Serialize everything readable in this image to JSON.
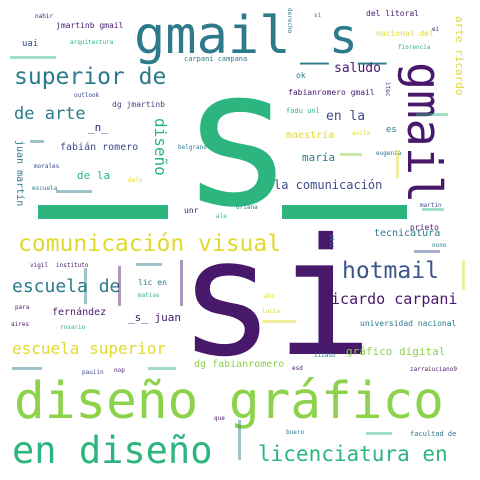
{
  "colors": {
    "background": "#ffffff",
    "teal": "#2c7a8c",
    "green": "#2cb57e",
    "purple": "#48196b",
    "yellow": "#e0da2c",
    "lime": "#8cd24a",
    "blue": "#3a568c",
    "navy": "#3e4a89"
  },
  "words": {
    "s": "s",
    "si": "si",
    "diseno_grafico": "diseño gráfico",
    "gmail": "gmail",
    "us_us": "_s_",
    "gmail_v": "gmail",
    "comunicacion_visual": "comunicación visual",
    "en_diseno": "en diseño",
    "superior_de": "superior de",
    "hotmail": "hotmail",
    "licenciatura_en": "licenciatura en",
    "escuela_de": "escuela de",
    "ricardo_carpani": "ricardo carpani",
    "escuela_superior": "escuela superior",
    "de_arte": "de arte",
    "diseno_v": "diseño",
    "la_comunicacion": "la comunicación",
    "grafico_digital": "gráfico digital",
    "saludo": "saludo",
    "en_la": "en la",
    "n": "_n_",
    "de_la": "de la",
    "s_juan": "_s_ juan",
    "arte_ricardo": "arte ricardo",
    "maria": "maría",
    "tecnicatura": "tecnicatura",
    "fernandez": "fernández",
    "maestria": "maestría",
    "dg_fabianromero": "dg fabianromero",
    "fabian_romero": "fabián romero",
    "juan_martin": "juan martín",
    "martin_birritella": "martin birrittella",
    "universidad_nacional": "universidad nacional",
    "jmartinb_gmail": "jmartinb gmail",
    "uai": "uai",
    "del_litoral": "del litoral",
    "nacional_del": "nacional del",
    "fiorencia": "fiorencia",
    "carpani_campana": "carpani campana",
    "fabianromero_gmail": "fabianromero gmail",
    "dg_jmartinb": "dg jmartinb",
    "ok": "ok",
    "fadu_unl": "fadu unl",
    "es": "es",
    "unr": "unr",
    "lic_en": "lic en",
    "prieto": "prieto",
    "facultad_de": "facultad de",
    "zarraiuciano9": "zarraiuciano9",
    "instituto": "instituto",
    "morales": "morales",
    "vigil": "vigil",
    "para": "para",
    "aires": "aires",
    "rosario": "rosario",
    "matias": "matias",
    "lucia": "lucía",
    "pauiin": "pauiin",
    "nop": "nop",
    "esd": "esd",
    "eugenia": "eugenia",
    "belgrano": "belgrano",
    "nono": "nono",
    "escuela_small": "escuela",
    "nahir": "nahir",
    "arquitectura": "arquitectura",
    "outlook": "outlook",
    "oriana": "oriana",
    "si_small": "si",
    "derecho": "derecho",
    "ei": "ei",
    "buero": "buero",
    "que": "que",
    "ano": "año",
    "iizaso": "iizaso",
    "avila": "avila",
    "dalo": "dalo",
    "ale": "ale",
    "martin": "martin",
    "itec": "itec",
    "sisi": "sisi"
  }
}
